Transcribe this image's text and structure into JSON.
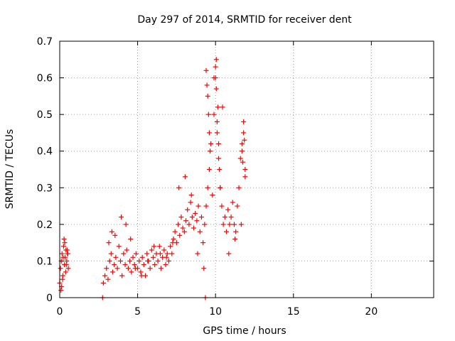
{
  "chart_data": {
    "type": "scatter",
    "title": "Day 297 of 2014, SRMTID for receiver dent",
    "xlabel": "GPS time / hours",
    "ylabel": "SRMTID / TECUs",
    "xlim": [
      0,
      24
    ],
    "ylim": [
      0,
      0.7
    ],
    "xticks": [
      0,
      5,
      10,
      15,
      20
    ],
    "yticks": [
      0,
      0.1,
      0.2,
      0.3,
      0.4,
      0.5,
      0.6,
      0.7
    ],
    "xtick_labels": [
      "0",
      "5",
      "10",
      "15",
      "20"
    ],
    "ytick_labels": [
      "0",
      "0.1",
      "0.2",
      "0.3",
      "0.4",
      "0.5",
      "0.6",
      "0.7"
    ],
    "grid": true,
    "marker": "+",
    "color": "#ff0000",
    "series": [
      {
        "name": "SRMTID",
        "x": [
          0.0,
          0.05,
          0.1,
          0.15,
          0.2,
          0.25,
          0.3,
          0.35,
          0.4,
          0.45,
          0.5,
          0.55,
          0.08,
          0.18,
          0.28,
          0.38,
          0.48,
          0.12,
          0.22,
          0.32,
          0.42,
          0.52,
          2.8,
          2.9,
          3.0,
          3.1,
          3.2,
          3.3,
          3.4,
          3.5,
          3.6,
          3.7,
          3.8,
          3.9,
          4.0,
          4.1,
          4.2,
          4.3,
          4.4,
          4.5,
          4.6,
          4.7,
          4.8,
          4.9,
          5.0,
          5.1,
          5.2,
          5.3,
          5.4,
          5.5,
          5.6,
          5.7,
          5.8,
          5.9,
          6.0,
          6.1,
          6.2,
          6.3,
          6.4,
          6.5,
          6.6,
          6.7,
          6.8,
          6.9,
          7.0,
          7.1,
          7.2,
          7.3,
          7.4,
          7.5,
          7.6,
          7.7,
          7.8,
          7.9,
          8.0,
          8.1,
          8.2,
          8.3,
          8.4,
          8.5,
          8.6,
          8.7,
          8.8,
          8.9,
          9.0,
          9.1,
          9.2,
          9.3,
          9.4,
          9.5,
          9.6,
          9.7,
          9.8,
          9.9,
          10.0,
          10.1,
          10.2,
          10.3,
          10.4,
          10.5,
          10.6,
          10.7,
          10.8,
          10.9,
          11.0,
          11.1,
          11.2,
          11.3,
          11.4,
          11.5,
          11.6,
          11.7,
          11.8,
          11.9,
          3.15,
          3.35,
          3.55,
          3.95,
          4.25,
          4.55,
          4.85,
          5.25,
          5.65,
          6.05,
          6.45,
          6.85,
          7.25,
          7.65,
          8.05,
          8.45,
          8.85,
          9.25,
          9.65,
          10.05,
          10.45,
          10.85,
          11.25,
          11.65,
          9.4,
          9.45,
          9.5,
          9.55,
          9.6,
          9.9,
          10.0,
          10.05,
          10.1,
          10.15,
          10.2,
          10.25,
          10.3,
          11.7,
          11.75,
          11.8,
          11.85,
          11.9,
          2.75,
          9.35
        ],
        "y": [
          0.04,
          0.08,
          0.1,
          0.12,
          0.06,
          0.14,
          0.09,
          0.11,
          0.13,
          0.1,
          0.12,
          0.08,
          0.02,
          0.05,
          0.16,
          0.07,
          0.13,
          0.03,
          0.11,
          0.15,
          0.09,
          0.12,
          0.04,
          0.06,
          0.08,
          0.05,
          0.1,
          0.12,
          0.07,
          0.09,
          0.11,
          0.08,
          0.14,
          0.1,
          0.06,
          0.12,
          0.09,
          0.13,
          0.08,
          0.1,
          0.07,
          0.11,
          0.09,
          0.12,
          0.08,
          0.1,
          0.07,
          0.11,
          0.09,
          0.06,
          0.12,
          0.1,
          0.08,
          0.13,
          0.11,
          0.09,
          0.12,
          0.1,
          0.14,
          0.08,
          0.11,
          0.13,
          0.09,
          0.12,
          0.1,
          0.14,
          0.12,
          0.16,
          0.18,
          0.15,
          0.2,
          0.17,
          0.22,
          0.19,
          0.18,
          0.21,
          0.24,
          0.2,
          0.26,
          0.22,
          0.19,
          0.23,
          0.21,
          0.25,
          0.18,
          0.22,
          0.15,
          0.2,
          0.25,
          0.3,
          0.35,
          0.42,
          0.28,
          0.5,
          0.6,
          0.45,
          0.38,
          0.3,
          0.25,
          0.2,
          0.22,
          0.18,
          0.24,
          0.2,
          0.22,
          0.26,
          0.2,
          0.18,
          0.25,
          0.3,
          0.38,
          0.42,
          0.45,
          0.35,
          0.15,
          0.18,
          0.17,
          0.22,
          0.2,
          0.16,
          0.08,
          0.06,
          0.1,
          0.14,
          0.12,
          0.11,
          0.15,
          0.3,
          0.33,
          0.28,
          0.12,
          0.08,
          0.4,
          0.65,
          0.52,
          0.12,
          0.16,
          0.2,
          0.62,
          0.58,
          0.55,
          0.5,
          0.45,
          0.6,
          0.63,
          0.57,
          0.48,
          0.52,
          0.42,
          0.35,
          0.3,
          0.4,
          0.37,
          0.48,
          0.43,
          0.33,
          0.0,
          0.0
        ]
      }
    ]
  }
}
